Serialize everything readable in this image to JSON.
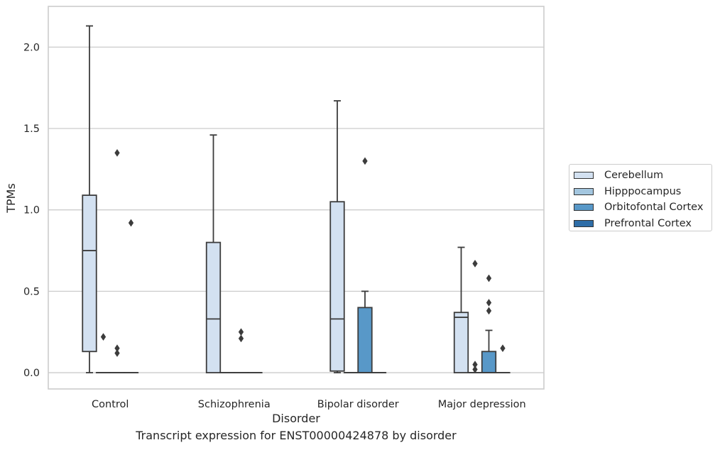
{
  "chart_data": {
    "type": "box",
    "xlabel": "Disorder",
    "ylabel": "TPMs",
    "caption": "Transcript expression for ENST00000424878 by disorder",
    "ylim": [
      -0.1,
      2.25
    ],
    "yticks": [
      "0.0",
      "0.5",
      "1.0",
      "1.5",
      "2.0"
    ],
    "grid": "horizontal",
    "legend_position": "right",
    "categories": [
      "Control",
      "Schizophrenia",
      "Bipolar disorder",
      "Major depression"
    ],
    "series": [
      {
        "name": "Cerebellum",
        "color": "#d3e1f1",
        "boxes": [
          {
            "q1": 0.13,
            "median": 0.75,
            "q3": 1.09,
            "whisker_low": 0.0,
            "whisker_high": 2.13,
            "outliers": []
          },
          {
            "q1": 0.0,
            "median": 0.33,
            "q3": 0.8,
            "whisker_low": 0.0,
            "whisker_high": 1.46,
            "outliers": []
          },
          {
            "q1": 0.01,
            "median": 0.33,
            "q3": 1.05,
            "whisker_low": 0.0,
            "whisker_high": 1.67,
            "outliers": []
          },
          {
            "q1": 0.0,
            "median": 0.34,
            "q3": 0.37,
            "whisker_low": 0.0,
            "whisker_high": 0.77,
            "outliers": []
          }
        ]
      },
      {
        "name": "Hipppocampus",
        "color": "#a3c6df",
        "boxes": [
          {
            "q1": 0.0,
            "median": 0.0,
            "q3": 0.0,
            "whisker_low": 0.0,
            "whisker_high": 0.0,
            "outliers": [
              0.22
            ]
          },
          {
            "q1": 0.0,
            "median": 0.0,
            "q3": 0.0,
            "whisker_low": 0.0,
            "whisker_high": 0.0,
            "outliers": []
          },
          {
            "q1": 0.0,
            "median": 0.0,
            "q3": 0.0,
            "whisker_low": 0.0,
            "whisker_high": 0.0,
            "outliers": []
          },
          {
            "q1": 0.0,
            "median": 0.0,
            "q3": 0.0,
            "whisker_low": 0.0,
            "whisker_high": 0.0,
            "outliers": [
              0.67,
              0.05,
              0.02
            ]
          }
        ]
      },
      {
        "name": "Orbitofontal Cortex",
        "color": "#5898c8",
        "boxes": [
          {
            "q1": 0.0,
            "median": 0.0,
            "q3": 0.0,
            "whisker_low": 0.0,
            "whisker_high": 0.0,
            "outliers": [
              1.35,
              0.15,
              0.12
            ]
          },
          {
            "q1": 0.0,
            "median": 0.0,
            "q3": 0.0,
            "whisker_low": 0.0,
            "whisker_high": 0.0,
            "outliers": [
              0.25,
              0.21
            ]
          },
          {
            "q1": 0.0,
            "median": 0.0,
            "q3": 0.4,
            "whisker_low": 0.0,
            "whisker_high": 0.5,
            "outliers": [
              1.3
            ]
          },
          {
            "q1": 0.0,
            "median": 0.0,
            "q3": 0.13,
            "whisker_low": 0.0,
            "whisker_high": 0.26,
            "outliers": [
              0.58,
              0.43,
              0.38
            ]
          }
        ]
      },
      {
        "name": "Prefrontal Cortex",
        "color": "#2e6da7",
        "boxes": [
          {
            "q1": 0.0,
            "median": 0.0,
            "q3": 0.0,
            "whisker_low": 0.0,
            "whisker_high": 0.0,
            "outliers": [
              0.92
            ]
          },
          {
            "q1": 0.0,
            "median": 0.0,
            "q3": 0.0,
            "whisker_low": 0.0,
            "whisker_high": 0.0,
            "outliers": []
          },
          {
            "q1": 0.0,
            "median": 0.0,
            "q3": 0.0,
            "whisker_low": 0.0,
            "whisker_high": 0.0,
            "outliers": []
          },
          {
            "q1": 0.0,
            "median": 0.0,
            "q3": 0.0,
            "whisker_low": 0.0,
            "whisker_high": 0.0,
            "outliers": [
              0.15
            ]
          }
        ]
      }
    ]
  }
}
